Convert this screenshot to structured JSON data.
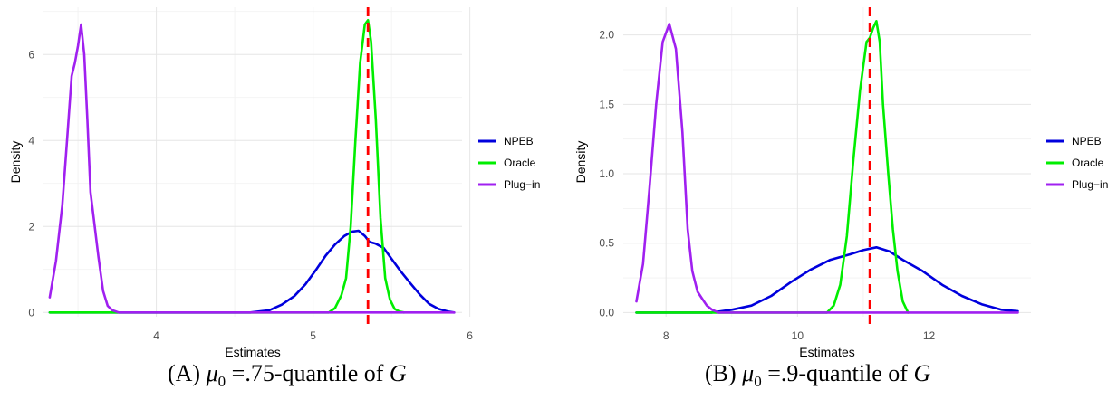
{
  "chart_data": [
    {
      "type": "line",
      "xlabel": "Estimates",
      "ylabel": "Density",
      "xlim": [
        3.28,
        5.95
      ],
      "ylim": [
        -0.1,
        7.1
      ],
      "xticks": [
        4,
        5,
        6
      ],
      "yticks": [
        0,
        2,
        4,
        6
      ],
      "xtick_labels": [
        "4",
        "5",
        "6"
      ],
      "ytick_labels": [
        "0",
        "2",
        "4",
        "6"
      ],
      "grid": true,
      "legend_position": "right",
      "vline": {
        "x": 5.35,
        "color": "#ff0000",
        "style": "dashed"
      },
      "series": [
        {
          "name": "NPEB",
          "color": "#0000dd",
          "x": [
            3.32,
            4.6,
            4.72,
            4.8,
            4.88,
            4.95,
            5.02,
            5.08,
            5.14,
            5.2,
            5.25,
            5.29,
            5.33,
            5.36,
            5.4,
            5.45,
            5.5,
            5.56,
            5.62,
            5.68,
            5.74,
            5.8,
            5.86,
            5.9
          ],
          "y": [
            0,
            0,
            0.05,
            0.18,
            0.38,
            0.65,
            1.0,
            1.32,
            1.58,
            1.78,
            1.88,
            1.9,
            1.78,
            1.64,
            1.6,
            1.5,
            1.25,
            0.95,
            0.68,
            0.42,
            0.2,
            0.08,
            0.02,
            0
          ]
        },
        {
          "name": "Oracle",
          "color": "#00ee00",
          "x": [
            3.32,
            5.1,
            5.14,
            5.18,
            5.21,
            5.24,
            5.27,
            5.3,
            5.33,
            5.35,
            5.37,
            5.4,
            5.43,
            5.46,
            5.49,
            5.52,
            5.55,
            5.58
          ],
          "y": [
            0,
            0,
            0.1,
            0.4,
            0.8,
            2.0,
            4.0,
            5.8,
            6.7,
            6.8,
            6.3,
            4.5,
            2.2,
            0.8,
            0.3,
            0.08,
            0.02,
            0
          ]
        },
        {
          "name": "Plug−in",
          "color": "#a020f0",
          "x": [
            3.32,
            3.36,
            3.4,
            3.43,
            3.46,
            3.48,
            3.5,
            3.52,
            3.54,
            3.56,
            3.58,
            3.6,
            3.63,
            3.66,
            3.69,
            3.72,
            3.76,
            3.9,
            5.9
          ],
          "y": [
            0.35,
            1.2,
            2.5,
            4.0,
            5.5,
            5.8,
            6.2,
            6.7,
            6.0,
            4.5,
            2.8,
            2.2,
            1.3,
            0.5,
            0.15,
            0.05,
            0,
            0,
            0
          ]
        }
      ]
    },
    {
      "type": "line",
      "xlabel": "Estimates",
      "ylabel": "Density",
      "xlim": [
        7.35,
        13.55
      ],
      "ylim": [
        -0.03,
        2.2
      ],
      "xticks": [
        8,
        10,
        12
      ],
      "yticks": [
        0.0,
        0.5,
        1.0,
        1.5,
        2.0
      ],
      "xtick_labels": [
        "8",
        "10",
        "12"
      ],
      "ytick_labels": [
        "0.0",
        "0.5",
        "1.0",
        "1.5",
        "2.0"
      ],
      "grid": true,
      "legend_position": "right",
      "vline": {
        "x": 11.1,
        "color": "#ff0000",
        "style": "dashed"
      },
      "series": [
        {
          "name": "NPEB",
          "color": "#0000dd",
          "x": [
            7.55,
            8.7,
            9.0,
            9.3,
            9.6,
            9.9,
            10.2,
            10.5,
            10.8,
            11.0,
            11.2,
            11.4,
            11.6,
            11.9,
            12.2,
            12.5,
            12.8,
            13.1,
            13.35
          ],
          "y": [
            0,
            0,
            0.02,
            0.05,
            0.12,
            0.22,
            0.31,
            0.38,
            0.42,
            0.45,
            0.47,
            0.44,
            0.38,
            0.3,
            0.2,
            0.12,
            0.06,
            0.02,
            0.01
          ]
        },
        {
          "name": "Oracle",
          "color": "#00ee00",
          "x": [
            7.55,
            10.45,
            10.55,
            10.65,
            10.75,
            10.85,
            10.95,
            11.05,
            11.1,
            11.15,
            11.2,
            11.25,
            11.3,
            11.38,
            11.45,
            11.52,
            11.6,
            11.68
          ],
          "y": [
            0,
            0,
            0.05,
            0.2,
            0.55,
            1.1,
            1.6,
            1.95,
            1.98,
            2.05,
            2.1,
            1.95,
            1.5,
            1.0,
            0.6,
            0.3,
            0.08,
            0
          ]
        },
        {
          "name": "Plug−in",
          "color": "#a020f0",
          "x": [
            7.55,
            7.65,
            7.75,
            7.85,
            7.95,
            8.05,
            8.15,
            8.25,
            8.33,
            8.4,
            8.48,
            8.55,
            8.62,
            8.7,
            8.8,
            13.35
          ],
          "y": [
            0.08,
            0.35,
            0.9,
            1.5,
            1.95,
            2.08,
            1.9,
            1.3,
            0.6,
            0.3,
            0.15,
            0.1,
            0.05,
            0.02,
            0,
            0
          ]
        }
      ]
    }
  ],
  "captions": [
    {
      "label": "(A)",
      "math": "μ",
      "sub": "0",
      "text": " =.75-quantile of ",
      "var": "G"
    },
    {
      "label": "(B)",
      "math": "μ",
      "sub": "0",
      "text": " =.9-quantile of ",
      "var": "G"
    }
  ]
}
